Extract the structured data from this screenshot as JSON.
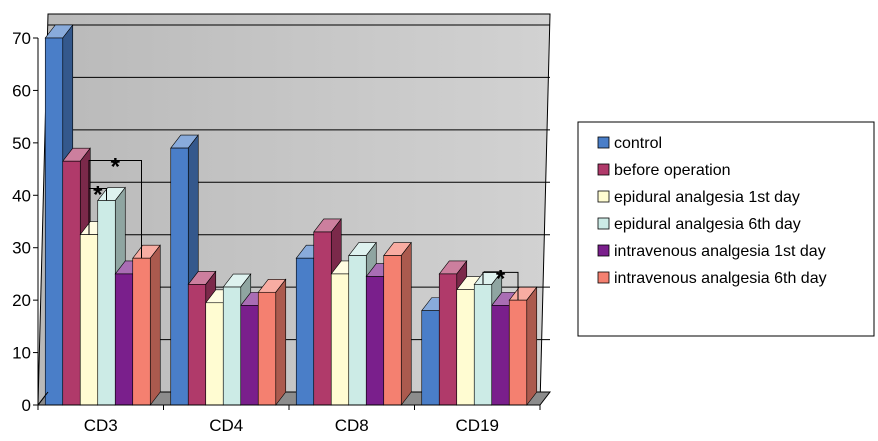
{
  "chart_data": {
    "type": "bar",
    "title": "",
    "xlabel": "",
    "ylabel": "",
    "categories": [
      "CD3",
      "CD4",
      "CD8",
      "CD19"
    ],
    "ylim": [
      0,
      70
    ],
    "yticks": [
      0,
      10,
      20,
      30,
      40,
      50,
      60,
      70
    ],
    "grid": true,
    "legend_position": "right",
    "series": [
      {
        "name": "control",
        "color": "#4a7ec8",
        "values": [
          70,
          49,
          28,
          18
        ]
      },
      {
        "name": "before operation",
        "color": "#b03a6a",
        "values": [
          46.5,
          23,
          33,
          25
        ]
      },
      {
        "name": "epidural analgesia 1st day",
        "color": "#fffcd2",
        "values": [
          32.5,
          19.5,
          25,
          22
        ]
      },
      {
        "name": "epidural analgesia 6th day",
        "color": "#ccebe6",
        "values": [
          39,
          22.5,
          28.5,
          23
        ]
      },
      {
        "name": "intravenous analgesia 1st day",
        "color": "#7a1f8c",
        "values": [
          25,
          19,
          24.5,
          19
        ]
      },
      {
        "name": "intravenous analgesia 6th day",
        "color": "#f48070",
        "values": [
          28,
          21.5,
          28.5,
          20
        ]
      }
    ],
    "annotations": [
      {
        "text": "*",
        "category": "CD3",
        "from_series": 2,
        "to_series": 3
      },
      {
        "text": "*",
        "category": "CD3",
        "from_series": 2,
        "to_series": 5
      },
      {
        "text": "*",
        "category": "CD19",
        "from_series": 3,
        "to_series": 5
      }
    ]
  }
}
